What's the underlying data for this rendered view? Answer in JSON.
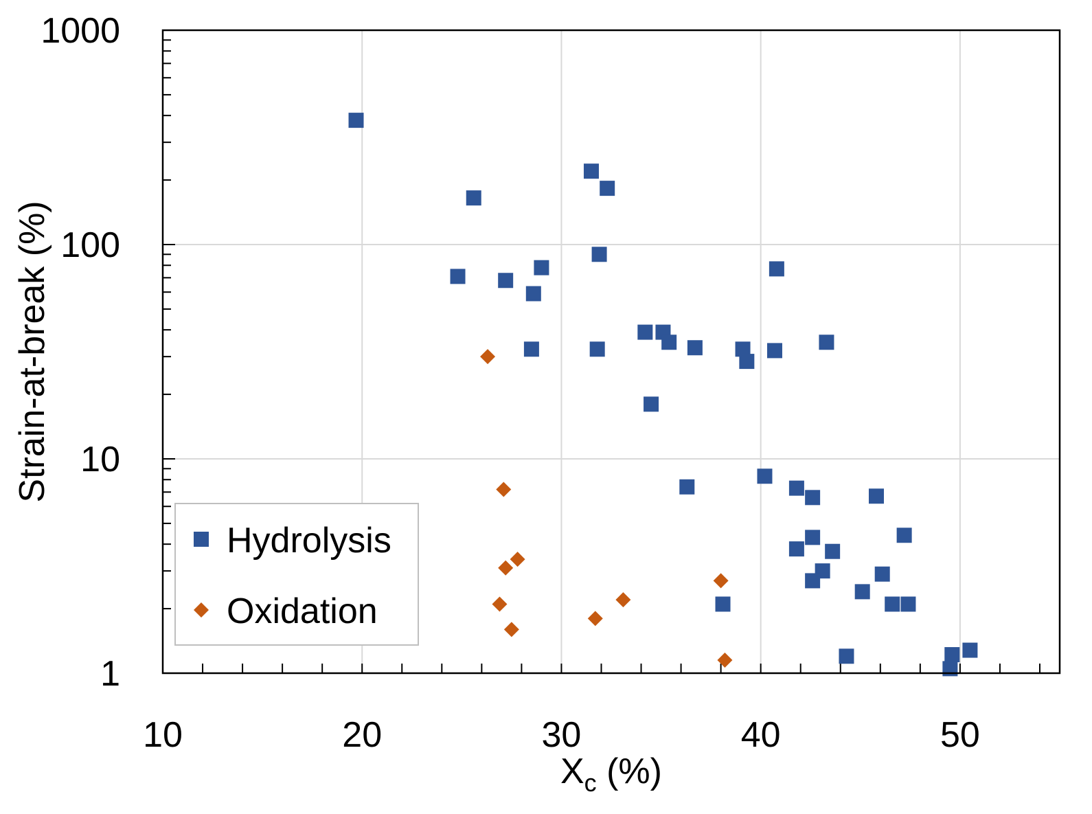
{
  "chart_data": {
    "type": "scatter",
    "title": "",
    "xlabel_main": "X",
    "xlabel_sub": "c",
    "xlabel_unit": " (%)",
    "ylabel": "Strain-at-break (%)",
    "xlim": [
      10,
      55
    ],
    "ylim": [
      1,
      1000
    ],
    "yscale": "log",
    "grid": true,
    "x_ticks": [
      10,
      20,
      30,
      40,
      50
    ],
    "x_tick_labels": [
      "10",
      "20",
      "30",
      "40",
      "50"
    ],
    "y_ticks": [
      1,
      10,
      100,
      1000
    ],
    "y_tick_labels": [
      "1",
      "10",
      "100",
      "1000"
    ],
    "legend_position": "bottom-left",
    "colors": {
      "hydrolysis": "#2e5597",
      "oxidation": "#c55a11",
      "grid": "#d9d9d9",
      "axis": "#000000"
    },
    "series": [
      {
        "name": "Hydrolysis",
        "marker": "square",
        "points": [
          {
            "x": 19.7,
            "y": 380
          },
          {
            "x": 25.6,
            "y": 165
          },
          {
            "x": 24.8,
            "y": 71
          },
          {
            "x": 27.2,
            "y": 68
          },
          {
            "x": 28.6,
            "y": 59
          },
          {
            "x": 29.0,
            "y": 78
          },
          {
            "x": 28.5,
            "y": 32.5
          },
          {
            "x": 31.5,
            "y": 220
          },
          {
            "x": 32.3,
            "y": 183
          },
          {
            "x": 31.9,
            "y": 90
          },
          {
            "x": 31.8,
            "y": 32.5
          },
          {
            "x": 34.2,
            "y": 39
          },
          {
            "x": 35.1,
            "y": 39
          },
          {
            "x": 35.4,
            "y": 35
          },
          {
            "x": 36.7,
            "y": 33
          },
          {
            "x": 34.5,
            "y": 18
          },
          {
            "x": 36.3,
            "y": 7.4
          },
          {
            "x": 39.1,
            "y": 32.5
          },
          {
            "x": 39.3,
            "y": 28.5
          },
          {
            "x": 40.7,
            "y": 32
          },
          {
            "x": 40.8,
            "y": 77
          },
          {
            "x": 43.3,
            "y": 35
          },
          {
            "x": 40.2,
            "y": 8.3
          },
          {
            "x": 41.8,
            "y": 7.3
          },
          {
            "x": 42.6,
            "y": 6.6
          },
          {
            "x": 45.8,
            "y": 6.7
          },
          {
            "x": 42.6,
            "y": 4.3
          },
          {
            "x": 41.8,
            "y": 3.8
          },
          {
            "x": 43.6,
            "y": 3.7
          },
          {
            "x": 43.1,
            "y": 3.0
          },
          {
            "x": 42.6,
            "y": 2.7
          },
          {
            "x": 46.1,
            "y": 2.9
          },
          {
            "x": 47.2,
            "y": 4.4
          },
          {
            "x": 45.1,
            "y": 2.4
          },
          {
            "x": 46.6,
            "y": 2.1
          },
          {
            "x": 47.4,
            "y": 2.1
          },
          {
            "x": 38.1,
            "y": 2.1
          },
          {
            "x": 44.3,
            "y": 1.2
          },
          {
            "x": 49.6,
            "y": 1.22
          },
          {
            "x": 50.5,
            "y": 1.28
          },
          {
            "x": 49.5,
            "y": 1.05
          }
        ]
      },
      {
        "name": "Oxidation",
        "marker": "diamond",
        "points": [
          {
            "x": 26.3,
            "y": 30
          },
          {
            "x": 27.1,
            "y": 7.2
          },
          {
            "x": 27.8,
            "y": 3.4
          },
          {
            "x": 27.2,
            "y": 3.1
          },
          {
            "x": 26.9,
            "y": 2.1
          },
          {
            "x": 27.5,
            "y": 1.6
          },
          {
            "x": 31.7,
            "y": 1.8
          },
          {
            "x": 33.1,
            "y": 2.2
          },
          {
            "x": 38.0,
            "y": 2.7
          },
          {
            "x": 38.2,
            "y": 1.15
          }
        ]
      }
    ]
  }
}
